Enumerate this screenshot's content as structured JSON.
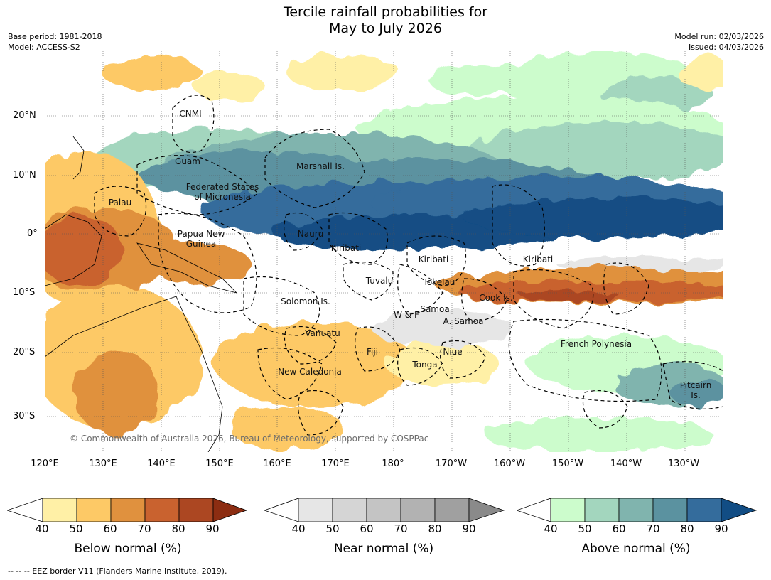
{
  "title": {
    "line1": "Tercile rainfall probabilities for",
    "line2": "May to July 2026"
  },
  "meta": {
    "base_period": "Base period: 1981-2018",
    "model": "Model: ACCESS-S2",
    "model_run": "Model run: 02/03/2026",
    "issued": "Issued: 04/03/2026"
  },
  "map": {
    "lat_labels": [
      "20°N",
      "10°N",
      "0°",
      "10°S",
      "20°S",
      "30°S"
    ],
    "lon_labels": [
      "120°E",
      "130°E",
      "140°E",
      "150°E",
      "160°E",
      "170°E",
      "180°",
      "170°W",
      "160°W",
      "150°W",
      "140°W",
      "130°W"
    ],
    "regions": {
      "cnmi": "CNMI",
      "guam": "Guam",
      "marshall": "Marshall Is.",
      "fsm_1": "Federated States",
      "fsm_2": "of Micronesia",
      "palau": "Palau",
      "png_1": "Papua New",
      "png_2": "Guinea",
      "nauru": "Nauru",
      "kiribati_w": "Kiribati",
      "kiribati_c": "Kiribati",
      "kiribati_e": "Kiribati",
      "tuvalu": "Tuvalu",
      "tokelau": "Tokelau",
      "cook": "Cook Is.",
      "solomon": "Solomon Is.",
      "wf": "W & F",
      "samoa": "Samoa",
      "asamoa": "A. Samoa",
      "vanuatu": "Vanuatu",
      "fiji": "Fiji",
      "niue": "Niue",
      "frpoly": "French Polynesia",
      "tonga": "Tonga",
      "newcal": "New Caledonia",
      "pitcairn_1": "Pitcairn",
      "pitcairn_2": "Is."
    },
    "copyright": "© Commonwealth of Australia 2026, Bureau of Meteorology, supported by COSPPac"
  },
  "legends": [
    {
      "label": "Below normal (%)",
      "ticks": [
        "40",
        "50",
        "60",
        "70",
        "80",
        "90"
      ],
      "colors": [
        "#fff0a6",
        "#fdc966",
        "#e0913e",
        "#c9622f",
        "#ac4722",
        "#8c2d12"
      ]
    },
    {
      "label": "Near normal (%)",
      "ticks": [
        "40",
        "50",
        "60",
        "70",
        "80",
        "90"
      ],
      "colors": [
        "#e6e6e6",
        "#d5d5d5",
        "#c4c4c4",
        "#b2b2b2",
        "#a0a0a0",
        "#8a8a8a"
      ]
    },
    {
      "label": "Above normal (%)",
      "ticks": [
        "40",
        "50",
        "60",
        "70",
        "80",
        "90"
      ],
      "colors": [
        "#ccfccc",
        "#a3d6be",
        "#80b4ae",
        "#5b92a0",
        "#346c9c",
        "#124d84"
      ]
    }
  ],
  "footnote": "-- -- -- EEZ border V11 (Flanders Marine Institute, 2019)."
}
